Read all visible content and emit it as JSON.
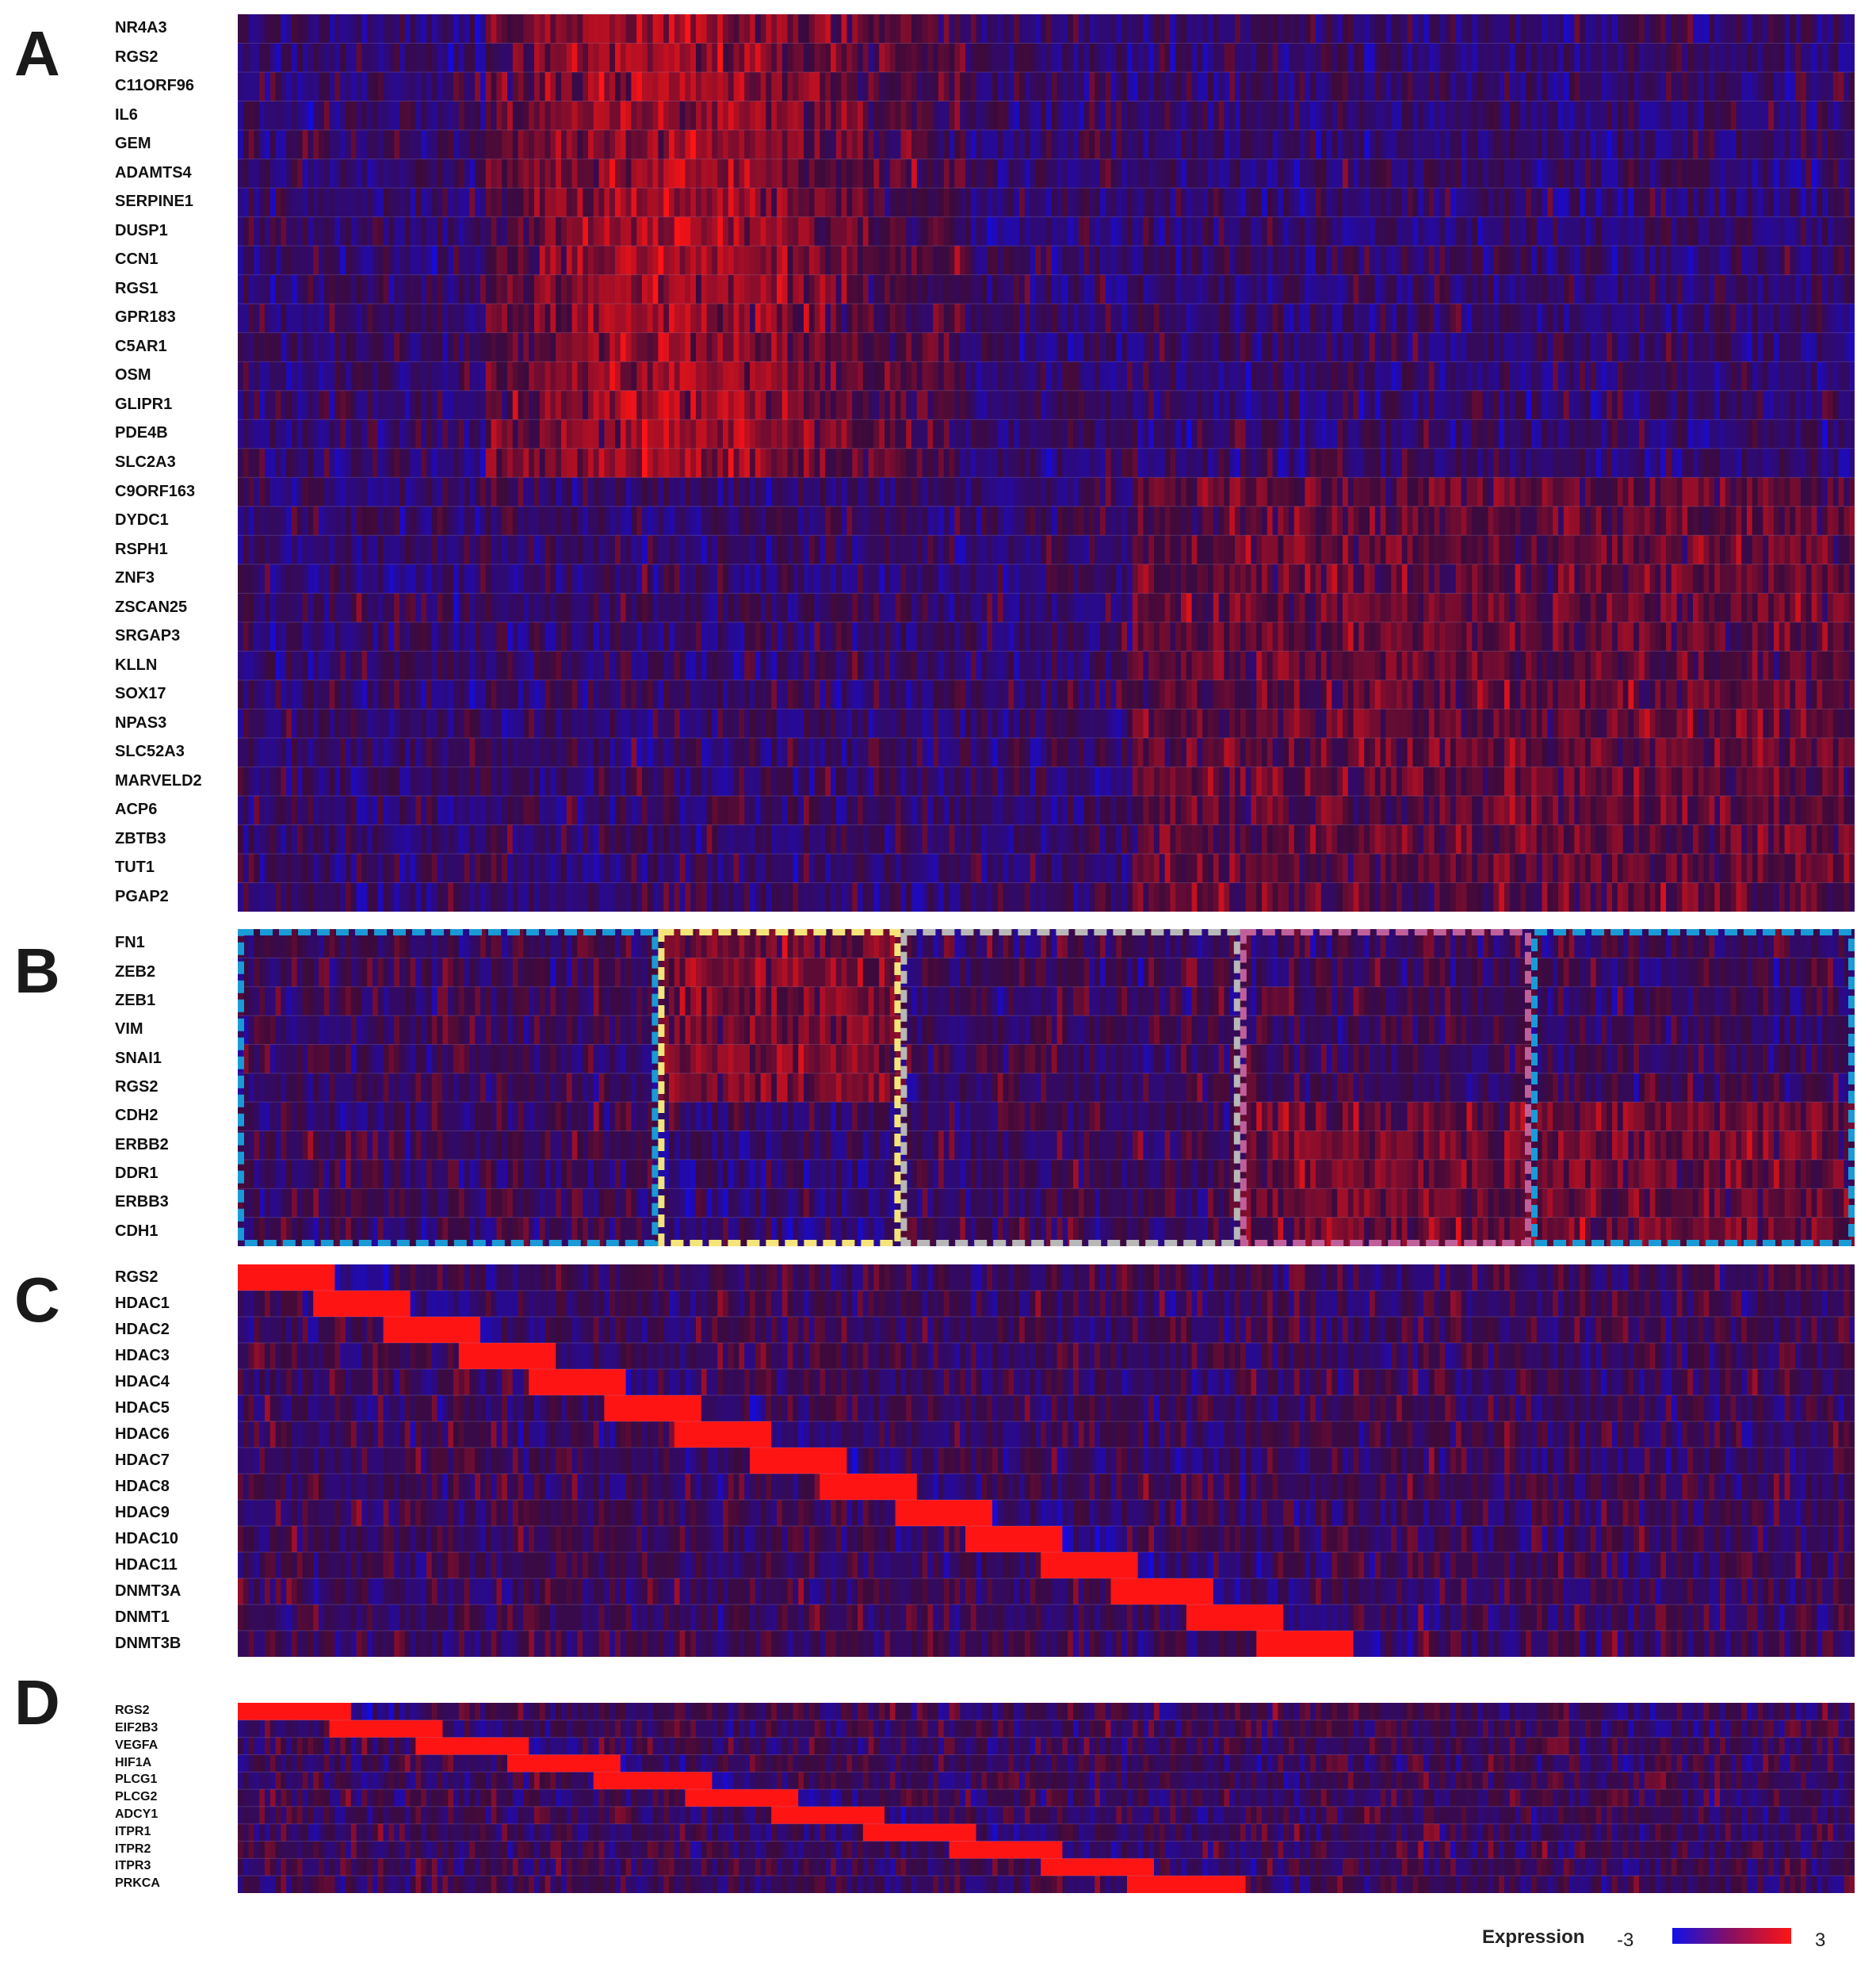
{
  "chart_data": [
    {
      "type": "heatmap",
      "panel": "A",
      "genes": [
        "NR4A3",
        "RGS2",
        "C11ORF96",
        "IL6",
        "GEM",
        "ADAMTS4",
        "SERPINE1",
        "DUSP1",
        "CCN1",
        "RGS1",
        "GPR183",
        "C5AR1",
        "OSM",
        "GLIPR1",
        "PDE4B",
        "SLC2A3",
        "C9ORF163",
        "DYDC1",
        "RSPH1",
        "ZNF3",
        "ZSCAN25",
        "SRGAP3",
        "KLLN",
        "SOX17",
        "NPAS3",
        "SLC52A3",
        "MARVELD2",
        "ACP6",
        "ZBTB3",
        "TUT1",
        "PGAP2"
      ]
    },
    {
      "type": "heatmap",
      "panel": "B",
      "genes": [
        "FN1",
        "ZEB2",
        "ZEB1",
        "VIM",
        "SNAI1",
        "RGS2",
        "CDH2",
        "ERBB2",
        "DDR1",
        "ERBB3",
        "CDH1"
      ],
      "cluster_box_colors": [
        "#1a9ad6",
        "#f5e47a",
        "#b8b8b8",
        "#c0609a",
        "#1a9ad6"
      ]
    },
    {
      "type": "heatmap",
      "panel": "C",
      "genes": [
        "RGS2",
        "HDAC1",
        "HDAC2",
        "HDAC3",
        "HDAC4",
        "HDAC5",
        "HDAC6",
        "HDAC7",
        "HDAC8",
        "HDAC9",
        "HDAC10",
        "HDAC11",
        "DNMT3A",
        "DNMT1",
        "DNMT3B"
      ]
    },
    {
      "type": "heatmap",
      "panel": "D",
      "genes": [
        "RGS2",
        "EIF2B3",
        "VEGFA",
        "HIF1A",
        "PLCG1",
        "PLCG2",
        "ADCY1",
        "ITPR1",
        "ITPR2",
        "ITPR3",
        "PRKCA"
      ]
    }
  ],
  "legend": {
    "title": "Expression",
    "min": "-3",
    "max": "3",
    "colors": {
      "low": "#1010e8",
      "mid": "#8a1060",
      "high": "#ff1414"
    }
  }
}
